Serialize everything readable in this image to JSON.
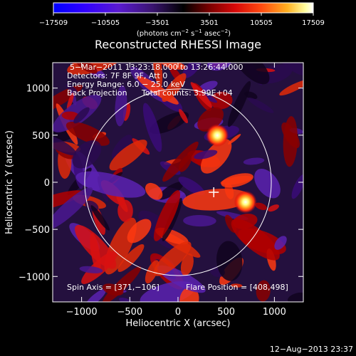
{
  "chart_data": {
    "type": "heatmap",
    "title": "Reconstructed RHESSI Image",
    "xlabel": "Heliocentric X (arcsec)",
    "ylabel": "Heliocentric Y (arcsec)",
    "xlim": [
      -1300,
      1300
    ],
    "ylim": [
      -1270,
      1270
    ],
    "xticks": [
      -1000,
      -500,
      0,
      500,
      1000
    ],
    "xtick_labels": [
      "−1000",
      "−500",
      "0",
      "500",
      "1000"
    ],
    "yticks": [
      -1000,
      -500,
      0,
      500,
      1000
    ],
    "ytick_labels": [
      "−1000",
      "−500",
      "0",
      "500",
      "1000"
    ],
    "colorbar": {
      "min": -17509,
      "max": 17509,
      "ticks": [
        -17509,
        -10505,
        -3501,
        3501,
        10505,
        17509
      ],
      "tick_labels": [
        "−17509",
        "−10505",
        "−3501",
        "3501",
        "10505",
        "17509"
      ],
      "label": "(photons cm",
      "label_exp1": "−2",
      "label_mid": " s",
      "label_exp2": "−1",
      "label_mid2": " asec",
      "label_exp3": "−2",
      "label_end": ")"
    },
    "annotations": {
      "time_range": "5−Mar−2011 13:23:18.000 to 13:26:44.000",
      "detectors": "Detectors: 7F 8F 9F, Att 0",
      "energy_range": "Energy Range: 6.0 − 25.0 keV",
      "method": "Back Projection",
      "total_counts": "Total counts: 3.99E+04",
      "spin_axis": "Spin Axis = [371,−106]",
      "flare_position": "Flare Position = [408,498]"
    },
    "solar_limb_radius": 968,
    "sources": [
      {
        "x": 408,
        "y": 498
      },
      {
        "x": 700,
        "y": -210
      }
    ],
    "spin_axis_marker": {
      "x": 371,
      "y": -106
    },
    "grid": false
  },
  "timestamp": "12−Aug−2013 23:37",
  "colors": {
    "background": "#000000",
    "foreground": "#ffffff",
    "colormap": [
      "#0000ff",
      "#3a00c8",
      "#4a1a8c",
      "#2a0e4a",
      "#000000",
      "#5a0000",
      "#c40000",
      "#ff3a10",
      "#ff9a10",
      "#ffff60",
      "#ffffff"
    ]
  }
}
